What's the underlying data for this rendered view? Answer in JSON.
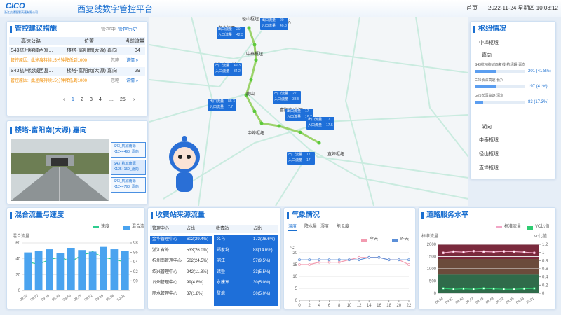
{
  "header": {
    "logo": "CICO",
    "logo_sub": "浙江交通智慧高速有限公司",
    "title": "西复线数字管控平台",
    "nav": "首页",
    "datetime": "2022-11-24 星期四 10:03:12"
  },
  "control_panel": {
    "title": "管控建议措施",
    "status": "管控中",
    "history": "管控历史",
    "columns": [
      "高速公路",
      "位置",
      "当前流量"
    ],
    "rows": [
      {
        "road": "S43杭州绕城西复...",
        "location": "楼塔-富阳南(大源) 嘉向",
        "flow": 34,
        "reason_label": "管控原因:",
        "reason": "此途痕持续15分钟降低到1000",
        "ignore": "忽略",
        "detail": "详情 »"
      },
      {
        "road": "S43杭州绕城西复...",
        "location": "楼塔-富阳南(大源) 嘉向",
        "flow": 29,
        "reason_label": "管控原因:",
        "reason": "此途痕持续15分钟降低到1000",
        "ignore": "忽略",
        "detail": "详情 »"
      }
    ],
    "pages": [
      "‹",
      "1",
      "2",
      "3",
      "4",
      "...",
      "25",
      "›"
    ]
  },
  "camera_panel": {
    "title": "楼塔-富阳南(大源) 嘉向",
    "cameras": [
      {
        "line1": "S43_杭城南源",
        "line2": "K124+493_嘉向"
      },
      {
        "line1": "S43_杭城南源",
        "line2": "K125+159_嘉向"
      },
      {
        "line1": "S43_杭城南源",
        "line2": "K124+793_嘉向"
      }
    ]
  },
  "map": {
    "places": [
      "径山枢纽",
      "老余杭",
      "老余杭西",
      "中泰枢纽",
      "富阳北(银湖)",
      "鹿山",
      "富阳西(新登)",
      "富阳南(大源)",
      "楼塔",
      "中埠枢纽",
      "高坦石",
      "直埠枢纽"
    ],
    "cards": [
      {
        "out_label": "出口流量",
        "out": 20,
        "in_label": "入口流量",
        "in": 40.3
      },
      {
        "out_label": "出口流量",
        "out": 20,
        "in_label": "入口流量",
        "in": 42.3
      },
      {
        "out_label": "出口流量",
        "out": 49.3,
        "in_label": "入口流量",
        "in": 34.2
      },
      {
        "out_label": "出口流量",
        "out": 22.0,
        "in_label": "入口流量",
        "in": 38.5
      },
      {
        "out_label": "出口流量",
        "out": 88.3,
        "in_label": "入口流量",
        "in": 7.7
      },
      {
        "out_label": "出口流量",
        "out": 17,
        "in_label": "入口流量",
        "in": 16.7
      },
      {
        "out_label": "出口流量",
        "out": 17,
        "in_label": "入口流量",
        "in": 17.5
      },
      {
        "out_label": "出口流量",
        "out": 17,
        "in_label": "入口流量",
        "in": 17
      }
    ]
  },
  "hub_panel": {
    "title": "枢纽情况",
    "hubs": [
      {
        "name": "中埠枢纽",
        "directions": [
          {
            "name": "嘉向",
            "items": [
              {
                "name": "S43杭州绕城西复线-杭绍段-嘉向",
                "value": 201,
                "share": 41.8,
                "value_label": "201 (41.8%)"
              },
              {
                "name": "G25长深高速-长兴",
                "value": 197,
                "share": 41,
                "value_label": "197 (41%)"
              },
              {
                "name": "G25长深高速-深圳",
                "value": 83,
                "share": 17.3,
                "value_label": "83 (17.3%)"
              }
            ]
          },
          {
            "name": "湖向"
          }
        ]
      },
      {
        "name": "中泰枢纽"
      },
      {
        "name": "径山枢纽"
      },
      {
        "name": "直埠枢纽"
      }
    ]
  },
  "flow_speed": {
    "title": "混合流量与速度",
    "y_label": "混合流量",
    "categories": [
      "09:34",
      "09:37",
      "09:40",
      "09:43",
      "09:46",
      "09:49",
      "09:52",
      "09:55",
      "09:58",
      "10:01"
    ],
    "series": [
      {
        "name": "速度",
        "color": "#2ecc8f",
        "axis": "y2",
        "values": [
          94,
          93.5,
          94.5,
          95,
          94,
          95.5,
          96,
          95,
          94.5,
          94
        ]
      },
      {
        "name": "混合流量",
        "color": "#4aa3ef",
        "values": [
          48,
          50,
          52,
          47,
          53,
          51,
          49,
          55,
          52,
          50
        ]
      }
    ],
    "ylim": [
      0,
      60
    ],
    "yticks": [
      0,
      20,
      40,
      60
    ],
    "y2lim": [
      88,
      98
    ],
    "y2ticks": [
      90,
      92,
      94,
      96,
      98
    ]
  },
  "toll_sources": {
    "title": "收费站来源流量",
    "columns": [
      "管理中心",
      "占比",
      "收费站",
      "占比"
    ],
    "centers": [
      [
        "金华管理中心",
        "602(29.4%)"
      ],
      [
        "浙江省外",
        "533(26.0%)"
      ],
      [
        "杭州南管理中心",
        "502(24.5%)"
      ],
      [
        "绍兴管理中心",
        "242(11.8%)"
      ],
      [
        "台州管理中心",
        "99(4.8%)"
      ],
      [
        "丽水管理中心",
        "37(1.8%)"
      ]
    ],
    "stations": [
      [
        "义乌",
        "172(28.6%)"
      ],
      [
        "郑家坞",
        "88(14.6%)"
      ],
      [
        "浦江",
        "57(9.5%)"
      ],
      [
        "诸暨",
        "33(5.5%)"
      ],
      [
        "永康东",
        "30(5.0%)"
      ],
      [
        "駐塘",
        "30(5.0%)"
      ]
    ]
  },
  "weather": {
    "title": "气象情况",
    "tabs": [
      "温度",
      "降水量",
      "湿度",
      "能见度"
    ],
    "unit": "°C",
    "x": [
      0,
      2,
      4,
      6,
      8,
      10,
      12,
      14,
      16,
      18,
      20,
      22
    ],
    "series": [
      {
        "name": "今天",
        "color": "#f29bb0",
        "values": [
          15,
          15,
          16,
          16,
          16,
          17,
          18,
          18,
          18,
          17,
          17,
          15
        ]
      },
      {
        "name": "昨天",
        "color": "#5b8fd8",
        "values": [
          17,
          17,
          17,
          17,
          17,
          17,
          17,
          18,
          18,
          17,
          17,
          17
        ]
      }
    ],
    "xlim": [
      0,
      22
    ],
    "xticks": [
      0,
      2,
      4,
      6,
      8,
      10,
      12,
      14,
      16,
      18,
      20,
      22
    ],
    "ylim": [
      0,
      20
    ],
    "yticks": [
      0,
      5,
      10,
      15,
      20
    ]
  },
  "service_level": {
    "title": "道路服务水平",
    "y_label": "标准流量",
    "y2_label": "vc比值",
    "categories": [
      "09:34",
      "09:37",
      "09:40",
      "09:43",
      "09:46",
      "09:49",
      "09:52",
      "09:55",
      "09:58",
      "10:01"
    ],
    "series": [
      {
        "name": "标准流量",
        "color": "#f2a6c6",
        "values": [
          1650,
          1700,
          1680,
          1720,
          1700,
          1690,
          1710,
          1700,
          1680,
          1650
        ]
      },
      {
        "name": "VC比值",
        "color": "#2ecc71",
        "axis": "y2",
        "values": [
          0.12,
          0.1,
          0.11,
          0.1,
          0.12,
          0.11,
          0.1,
          0.1,
          0.11,
          0.12
        ]
      }
    ],
    "ylim": [
      0,
      2000
    ],
    "yticks": [
      0,
      500,
      1000,
      1500,
      2000
    ],
    "y2lim": [
      0,
      1.2
    ],
    "y2ticks": [
      0,
      0.2,
      0.4,
      0.6,
      0.8,
      1,
      1.2
    ]
  }
}
